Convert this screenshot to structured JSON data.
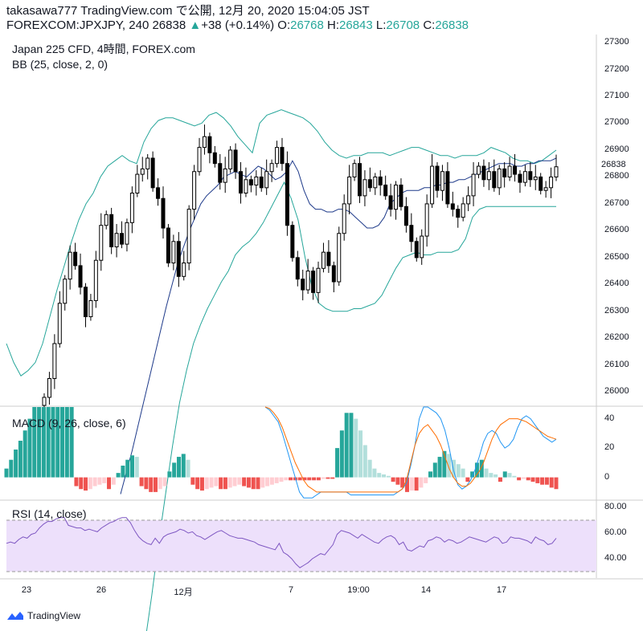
{
  "header": {
    "line1": "takasawa777 TradingView.com で公開, 12月 20, 2020 15:04:05 JST",
    "symbol": "FOREXCOM:JPXJPY, 240 26838",
    "change_arrow": "▲",
    "change": "+38 (+0.14%)",
    "o_label": "O:",
    "o_value": "26768",
    "h_label": "H:",
    "h_value": "26843",
    "l_label": "L:",
    "l_value": "26708",
    "c_label": "C:",
    "c_value": "26838"
  },
  "main_pane": {
    "title": "Japan 225 CFD, 4時間, FOREX.com",
    "indicator": "BB (25, close, 2, 0)",
    "last_price_label": "26838",
    "y_ticks": [
      "27300",
      "27200",
      "27100",
      "27000",
      "26900",
      "26800",
      "26700",
      "26600",
      "26500",
      "26400",
      "26300",
      "26200",
      "26100",
      "26000"
    ]
  },
  "macd_pane": {
    "title": "MACD (9, 26, close, 6)",
    "y_ticks": [
      "40",
      "20",
      "0"
    ]
  },
  "rsi_pane": {
    "title": "RSI (14, close)",
    "y_ticks": [
      "80.00",
      "60.00",
      "40.00"
    ]
  },
  "time_axis": [
    "23",
    "26",
    "12月",
    "7",
    "19:00",
    "14",
    "17"
  ],
  "branding": {
    "text": "TradingView",
    "icon": "tradingview-logo-icon"
  },
  "colors": {
    "up": "#26a69a",
    "down": "#ef5350",
    "band": "#26a69a",
    "basis": "#2962ff",
    "macd": "#2196f3",
    "signal": "#ff6d00",
    "rsi": "#7e57c2",
    "rsi_fill": "#ede0fb",
    "candle": "#000000"
  },
  "chart_data": [
    {
      "type": "candlestick",
      "title": "Japan 225 CFD, 4時間, FOREX.com",
      "overlay": "BB (25, close, 2, 0)",
      "ylim": [
        25950,
        27330
      ],
      "closes": [
        25980,
        26050,
        26180,
        26330,
        26420,
        26520,
        26470,
        26390,
        26280,
        26340,
        26490,
        26620,
        26660,
        26540,
        26590,
        26550,
        26630,
        26740,
        26810,
        26830,
        26870,
        26760,
        26720,
        26610,
        26480,
        26560,
        26430,
        26480,
        26680,
        26820,
        26910,
        26950,
        26890,
        26850,
        26780,
        26830,
        26900,
        26820,
        26740,
        26790,
        26770,
        26800,
        26760,
        26820,
        26850,
        26910,
        26850,
        26620,
        26500,
        26420,
        26380,
        26450,
        26370,
        26460,
        26520,
        26470,
        26410,
        26590,
        26700,
        26800,
        26850,
        26730,
        26790,
        26760,
        26800,
        26770,
        26730,
        26680,
        26770,
        26690,
        26620,
        26560,
        26500,
        26580,
        26700,
        26840,
        26750,
        26820,
        26700,
        26680,
        26650,
        26700,
        26730,
        26810,
        26840,
        26790,
        26820,
        26760,
        26830,
        26800,
        26840,
        26810,
        26780,
        26820,
        26790,
        26800,
        26750,
        26760,
        26800,
        26838
      ],
      "bb_upper": [
        26180,
        26110,
        26060,
        26080,
        26110,
        26180,
        26280,
        26380,
        26470,
        26560,
        26640,
        26700,
        26740,
        26800,
        26840,
        26860,
        26880,
        26860,
        26850,
        26930,
        26980,
        27010,
        27020,
        27020,
        27010,
        27000,
        26990,
        27000,
        27030,
        27040,
        27020,
        26990,
        26950,
        26920,
        26890,
        27000,
        27030,
        27040,
        27050,
        27040,
        27030,
        27020,
        27000,
        26970,
        26930,
        26900,
        26880,
        26870,
        26880,
        26880,
        26890,
        26890,
        26890,
        26880,
        26890,
        26900,
        26910,
        26910,
        26900,
        26890,
        26880,
        26880,
        26870,
        26880,
        26880,
        26880,
        26890,
        26910,
        26900,
        26890,
        26870,
        26860,
        26860,
        26850,
        26860,
        26880,
        26900
      ],
      "bb_basis": [
        25620,
        25700,
        25780,
        25870,
        25960,
        26050,
        26140,
        26230,
        26320,
        26400,
        26480,
        26540,
        26600,
        26650,
        26700,
        26730,
        26750,
        26770,
        26800,
        26810,
        26820,
        26810,
        26800,
        26820,
        26840,
        26830,
        26810,
        26790,
        26800,
        26820,
        26860,
        26820,
        26750,
        26700,
        26680,
        26680,
        26670,
        26670,
        26680,
        26680,
        26670,
        26650,
        26630,
        26610,
        26610,
        26620,
        26650,
        26700,
        26720,
        26740,
        26750,
        26750,
        26750,
        26760,
        26760,
        26770,
        26770,
        26780,
        26780,
        26790,
        26790,
        26800,
        26810,
        26820,
        26830,
        26840,
        26850,
        26850,
        26850,
        26840,
        26840,
        26850,
        26850,
        26860,
        26860,
        26860,
        26870
      ],
      "bb_lower": [
        25060,
        25240,
        25440,
        25620,
        25800,
        25960,
        26080,
        26180,
        26250,
        26310,
        26360,
        26410,
        26450,
        26510,
        26540,
        26560,
        26590,
        26630,
        26680,
        26730,
        26780,
        26720,
        26640,
        26500,
        26390,
        26330,
        26310,
        26300,
        26300,
        26300,
        26310,
        26310,
        26320,
        26330,
        26360,
        26410,
        26460,
        26500,
        26510,
        26520,
        26510,
        26510,
        26520,
        26520,
        26520,
        26530,
        26570,
        26650,
        26680,
        26690,
        26690,
        26690,
        26690,
        26690,
        26690,
        26690,
        26690,
        26690,
        26690,
        26690
      ],
      "x_labels": [
        "23",
        "26",
        "12月",
        "7",
        "19:00",
        "14",
        "17"
      ]
    },
    {
      "type": "bar",
      "title": "MACD (9, 26, close, 6)",
      "ylim": [
        -15,
        48
      ],
      "histogram": [
        6,
        12,
        19,
        25,
        32,
        40,
        48,
        48,
        48,
        48,
        48,
        48,
        48,
        48,
        48,
        -6,
        -8,
        -9,
        -8,
        -6,
        -5,
        -4,
        -8,
        -5,
        3,
        8,
        12,
        15,
        14,
        -6,
        -8,
        -10,
        -10,
        -8,
        -6,
        4,
        10,
        14,
        16,
        12,
        -5,
        -8,
        -9,
        -8,
        -7,
        -6,
        -8,
        -8,
        -7,
        -6,
        -5,
        -6,
        -7,
        -8,
        -8,
        -7,
        -6,
        -5,
        -4,
        -3,
        -2,
        -2,
        -2,
        -2,
        -2,
        -2,
        -2,
        -2,
        -1,
        -1,
        -1,
        20,
        32,
        44,
        44,
        40,
        32,
        22,
        12,
        6,
        3,
        2,
        1,
        -3,
        -5,
        -7,
        -10,
        -9,
        -9,
        -7,
        -4,
        4,
        10,
        14,
        18,
        16,
        12,
        9,
        6,
        -3,
        4,
        10,
        12,
        6,
        3,
        2,
        -3,
        4,
        3,
        1,
        -2,
        -1,
        -2,
        -3,
        -4,
        -5,
        -5,
        -7,
        -8
      ],
      "macd_line": [
        48,
        46,
        42,
        38,
        30,
        20,
        10,
        0,
        -10,
        -14,
        -14,
        -14,
        -12,
        -10,
        -10,
        -10,
        -10,
        -10,
        -10,
        -10,
        -12,
        -12,
        -12,
        -12,
        -12,
        -12,
        -12,
        -12,
        -12,
        -12,
        -12,
        -10,
        -8,
        -4,
        8,
        22,
        40,
        48,
        48,
        46,
        44,
        40,
        32,
        20,
        5,
        -5,
        -8,
        -6,
        -2,
        5,
        14,
        24,
        30,
        32,
        30,
        24,
        20,
        22,
        26,
        34,
        40,
        42,
        40,
        36,
        32,
        28,
        26,
        24,
        26
      ],
      "signal_line": [
        48,
        47,
        44,
        40,
        34,
        26,
        18,
        10,
        4,
        -2,
        -6,
        -8,
        -10,
        -10,
        -10,
        -10,
        -10,
        -10,
        -10,
        -10,
        -10,
        -10,
        -10,
        -10,
        -10,
        -10,
        -10,
        -10,
        -10,
        -10,
        -10,
        -10,
        -8,
        -2,
        10,
        22,
        30,
        34,
        36,
        32,
        28,
        22,
        14,
        6,
        0,
        -4,
        -6,
        -6,
        -4,
        0,
        4,
        10,
        18,
        26,
        32,
        36,
        38,
        40,
        40,
        40,
        39,
        38,
        36,
        34,
        32,
        30,
        28,
        27,
        26
      ]
    },
    {
      "type": "line",
      "title": "RSI (14, close)",
      "ylim": [
        25,
        85
      ],
      "bands": [
        70,
        30
      ],
      "values": [
        52,
        53,
        52,
        55,
        57,
        56,
        59,
        60,
        64,
        67,
        69,
        69,
        71,
        72,
        72,
        66,
        65,
        64,
        64,
        62,
        63,
        62,
        61,
        64,
        66,
        68,
        69,
        71,
        72,
        72,
        68,
        62,
        57,
        54,
        52,
        51,
        56,
        52,
        57,
        59,
        60,
        61,
        63,
        62,
        60,
        61,
        58,
        57,
        55,
        57,
        59,
        61,
        62,
        60,
        58,
        57,
        56,
        56,
        55,
        54,
        53,
        51,
        50,
        49,
        48,
        47,
        52,
        45,
        43,
        40,
        36,
        33,
        35,
        37,
        40,
        42,
        44,
        43,
        47,
        51,
        59,
        62,
        61,
        60,
        58,
        56,
        59,
        57,
        55,
        53,
        52,
        55,
        57,
        58,
        56,
        51,
        53,
        47,
        46,
        48,
        50,
        49,
        54,
        55,
        57,
        56,
        53,
        55,
        54,
        52,
        53,
        55,
        57,
        56,
        55,
        54,
        53,
        55,
        57,
        56,
        52,
        53,
        57,
        56,
        56,
        55,
        54,
        52,
        57,
        55,
        54,
        51,
        52,
        56
      ],
      "y_ticks": [
        "80.00",
        "60.00",
        "40.00"
      ]
    }
  ]
}
